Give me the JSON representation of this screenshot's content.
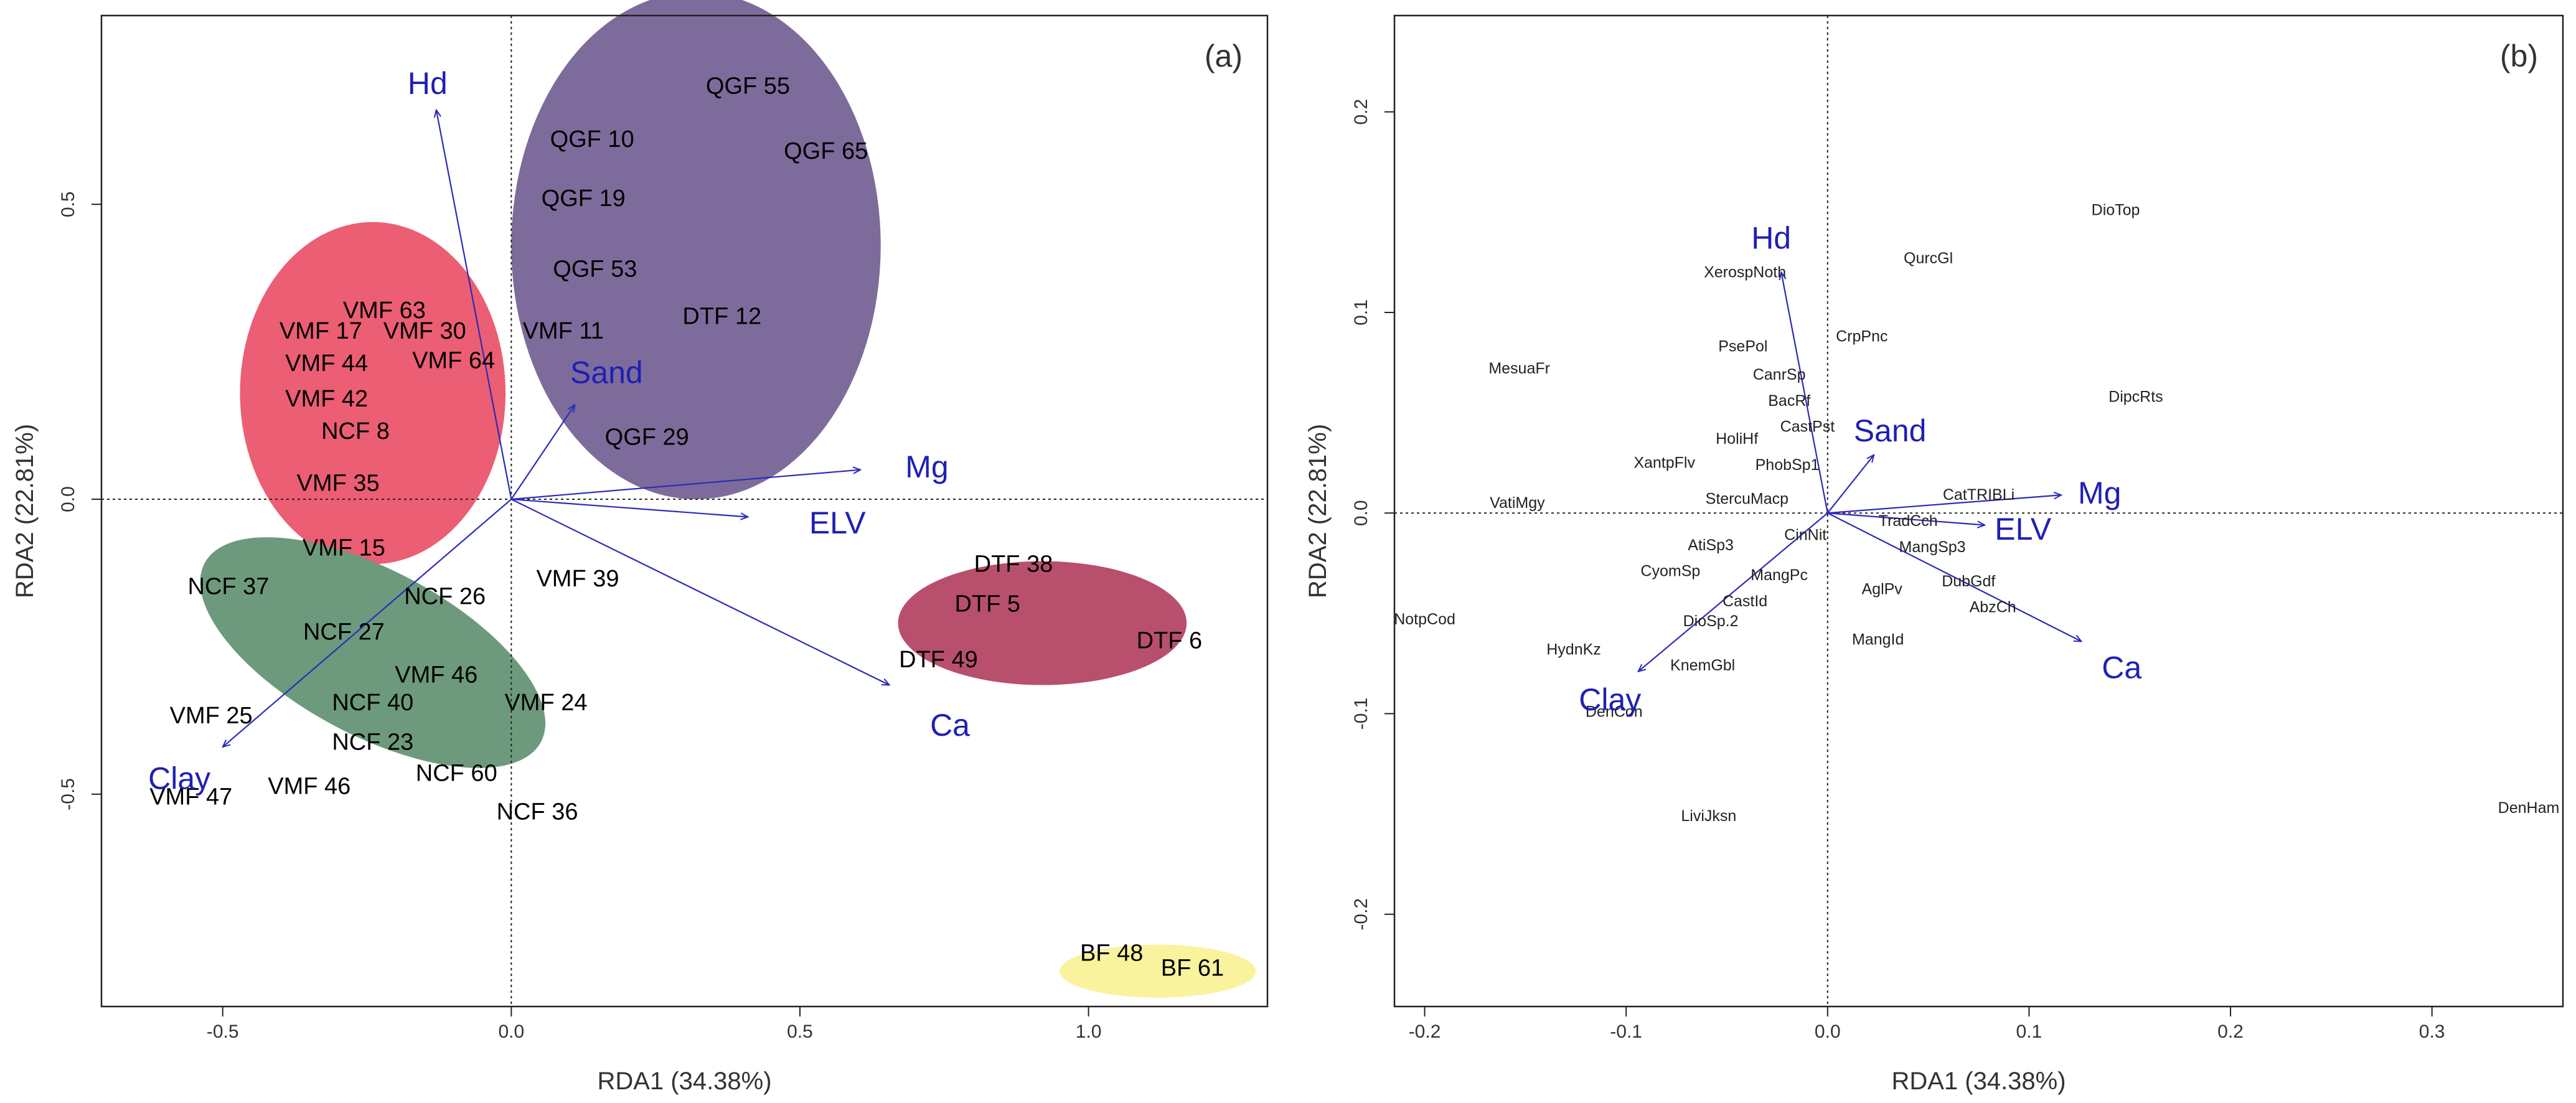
{
  "colors": {
    "arrow": "#2b2bb8",
    "var_label": "#1f1fb4",
    "frame": "#222222"
  },
  "chart_data": [
    {
      "type": "scatter",
      "panel": "(a)",
      "xlabel": "RDA1 (34.38%)",
      "ylabel": "RDA2 (22.81%)",
      "xlim": [
        -0.71,
        1.31
      ],
      "ylim": [
        -0.86,
        0.82
      ],
      "xticks": [
        -0.5,
        0.0,
        0.5,
        1.0
      ],
      "xtick_labels": [
        "-0.5",
        "0.0",
        "0.5",
        "1.0"
      ],
      "yticks": [
        -0.5,
        0.0,
        0.5
      ],
      "ytick_labels": [
        "-0.5",
        "0.0",
        "0.5"
      ],
      "ellipses": [
        {
          "group": "QGF",
          "cx": 0.32,
          "cy": 0.43,
          "rx": 0.32,
          "ry": 0.43,
          "color": "#7d6c9b"
        },
        {
          "group": "VMF",
          "cx": -0.24,
          "cy": 0.18,
          "rx": 0.23,
          "ry": 0.29,
          "color": "#eb5e73"
        },
        {
          "group": "NCF",
          "cx": -0.24,
          "cy": -0.26,
          "rx": 0.33,
          "ry": 0.14,
          "rotate": 28,
          "color": "#6d9a7c"
        },
        {
          "group": "DTF",
          "cx": 0.92,
          "cy": -0.21,
          "rx": 0.25,
          "ry": 0.105,
          "color": "#b8506d"
        },
        {
          "group": "BF",
          "cx": 1.12,
          "cy": -0.8,
          "rx": 0.17,
          "ry": 0.045,
          "color": "#faf39e"
        }
      ],
      "sites": [
        {
          "label": "QGF 55",
          "x": 0.41,
          "y": 0.7
        },
        {
          "label": "QGF 10",
          "x": 0.14,
          "y": 0.61
        },
        {
          "label": "QGF 65",
          "x": 0.545,
          "y": 0.59
        },
        {
          "label": "QGF 19",
          "x": 0.125,
          "y": 0.51
        },
        {
          "label": "QGF 53",
          "x": 0.145,
          "y": 0.39
        },
        {
          "label": "DTF 12",
          "x": 0.365,
          "y": 0.31
        },
        {
          "label": "VMF 11",
          "x": 0.09,
          "y": 0.285
        },
        {
          "label": "QGF 29",
          "x": 0.235,
          "y": 0.105
        },
        {
          "label": "VMF 63",
          "x": -0.22,
          "y": 0.32
        },
        {
          "label": "VMF 17",
          "x": -0.33,
          "y": 0.285
        },
        {
          "label": "VMF 30",
          "x": -0.15,
          "y": 0.285
        },
        {
          "label": "VMF 44",
          "x": -0.32,
          "y": 0.23
        },
        {
          "label": "VMF 64",
          "x": -0.1,
          "y": 0.235
        },
        {
          "label": "VMF 42",
          "x": -0.32,
          "y": 0.17
        },
        {
          "label": "NCF 8",
          "x": -0.27,
          "y": 0.115
        },
        {
          "label": "VMF 35",
          "x": -0.3,
          "y": 0.027
        },
        {
          "label": "VMF 15",
          "x": -0.29,
          "y": -0.083
        },
        {
          "label": "NCF 37",
          "x": -0.49,
          "y": -0.148
        },
        {
          "label": "NCF 26",
          "x": -0.115,
          "y": -0.165
        },
        {
          "label": "VMF 39",
          "x": 0.115,
          "y": -0.135
        },
        {
          "label": "NCF 27",
          "x": -0.29,
          "y": -0.225
        },
        {
          "label": "VMF 46",
          "x": -0.13,
          "y": -0.298
        },
        {
          "label": "NCF 40",
          "x": -0.24,
          "y": -0.345
        },
        {
          "label": "VMF 24",
          "x": 0.06,
          "y": -0.345
        },
        {
          "label": "VMF 25",
          "x": -0.52,
          "y": -0.367
        },
        {
          "label": "NCF 23",
          "x": -0.24,
          "y": -0.412
        },
        {
          "label": "NCF 60",
          "x": -0.095,
          "y": -0.465
        },
        {
          "label": "VMF 46",
          "x": -0.35,
          "y": -0.487
        },
        {
          "label": "VMF 47",
          "x": -0.555,
          "y": -0.505
        },
        {
          "label": "NCF 36",
          "x": 0.045,
          "y": -0.53
        },
        {
          "label": "DTF 38",
          "x": 0.87,
          "y": -0.11
        },
        {
          "label": "DTF 5",
          "x": 0.825,
          "y": -0.178
        },
        {
          "label": "DTF 6",
          "x": 1.14,
          "y": -0.24
        },
        {
          "label": "DTF 49",
          "x": 0.74,
          "y": -0.272
        },
        {
          "label": "BF 48",
          "x": 1.04,
          "y": -0.77
        },
        {
          "label": "BF 61",
          "x": 1.18,
          "y": -0.795
        }
      ],
      "vectors": [
        {
          "label": "Hd",
          "x": -0.13,
          "y": 0.66,
          "lx": -0.145,
          "ly": 0.705
        },
        {
          "label": "Sand",
          "x": 0.11,
          "y": 0.16,
          "lx": 0.165,
          "ly": 0.215
        },
        {
          "label": "Mg",
          "x": 0.605,
          "y": 0.05,
          "lx": 0.72,
          "ly": 0.055
        },
        {
          "label": "ELV",
          "x": 0.41,
          "y": -0.03,
          "lx": 0.565,
          "ly": -0.04
        },
        {
          "label": "Ca",
          "x": 0.655,
          "y": -0.315,
          "lx": 0.76,
          "ly": -0.383
        },
        {
          "label": "Clay",
          "x": -0.5,
          "y": -0.42,
          "lx": -0.575,
          "ly": -0.473
        }
      ]
    },
    {
      "type": "scatter",
      "panel": "(b)",
      "xlabel": "RDA1 (34.38%)",
      "ylabel": "RDA2 (22.81%)",
      "xlim": [
        -0.215,
        0.365
      ],
      "ylim": [
        -0.246,
        0.248
      ],
      "xticks": [
        -0.2,
        -0.1,
        0.0,
        0.1,
        0.2,
        0.3
      ],
      "xtick_labels": [
        "-0.2",
        "-0.1",
        "0.0",
        "0.1",
        "0.2",
        "0.3"
      ],
      "yticks": [
        -0.2,
        -0.1,
        0.0,
        0.1,
        0.2
      ],
      "ytick_labels": [
        "-0.2",
        "-0.1",
        "0.0",
        "0.1",
        "0.2"
      ],
      "species": [
        {
          "label": "DioTop",
          "x": 0.143,
          "y": 0.151
        },
        {
          "label": "QurcGl",
          "x": 0.05,
          "y": 0.127
        },
        {
          "label": "XerospNoth",
          "x": -0.041,
          "y": 0.12
        },
        {
          "label": "CrpPnc",
          "x": 0.017,
          "y": 0.088
        },
        {
          "label": "PsePol",
          "x": -0.042,
          "y": 0.083
        },
        {
          "label": "MesuaFr",
          "x": -0.153,
          "y": 0.072
        },
        {
          "label": "CanrSp",
          "x": -0.024,
          "y": 0.069
        },
        {
          "label": "DipcRts",
          "x": 0.153,
          "y": 0.058
        },
        {
          "label": "BacRf",
          "x": -0.019,
          "y": 0.056
        },
        {
          "label": "CastPst",
          "x": -0.01,
          "y": 0.043
        },
        {
          "label": "HoliHf",
          "x": -0.045,
          "y": 0.037
        },
        {
          "label": "XantpFlv",
          "x": -0.081,
          "y": 0.025
        },
        {
          "label": "PhobSp1",
          "x": -0.02,
          "y": 0.024
        },
        {
          "label": "CatTRIBLi",
          "x": 0.075,
          "y": 0.009
        },
        {
          "label": "VatiMgy",
          "x": -0.154,
          "y": 0.005
        },
        {
          "label": "StercuMacp",
          "x": -0.04,
          "y": 0.007
        },
        {
          "label": "TradCch",
          "x": 0.04,
          "y": -0.004
        },
        {
          "label": "CinNit",
          "x": -0.011,
          "y": -0.011
        },
        {
          "label": "MangSp3",
          "x": 0.052,
          "y": -0.017
        },
        {
          "label": "AtiSp3",
          "x": -0.058,
          "y": -0.016
        },
        {
          "label": "CyomSp",
          "x": -0.078,
          "y": -0.029
        },
        {
          "label": "MangPc",
          "x": -0.024,
          "y": -0.031
        },
        {
          "label": "DubGdf",
          "x": 0.07,
          "y": -0.034
        },
        {
          "label": "AglPv",
          "x": 0.027,
          "y": -0.038
        },
        {
          "label": "CastId",
          "x": -0.041,
          "y": -0.044
        },
        {
          "label": "AbzCh",
          "x": 0.082,
          "y": -0.047
        },
        {
          "label": "NotpCod",
          "x": -0.2,
          "y": -0.053
        },
        {
          "label": "DioSp.2",
          "x": -0.058,
          "y": -0.054
        },
        {
          "label": "MangId",
          "x": 0.025,
          "y": -0.063
        },
        {
          "label": "HydnKz",
          "x": -0.126,
          "y": -0.068
        },
        {
          "label": "KnemGbl",
          "x": -0.062,
          "y": -0.076
        },
        {
          "label": "DenCon",
          "x": -0.106,
          "y": -0.099
        },
        {
          "label": "LiviJksn",
          "x": -0.059,
          "y": -0.151
        },
        {
          "label": "DenHam",
          "x": 0.348,
          "y": -0.147
        }
      ],
      "vectors": [
        {
          "label": "Hd",
          "x": -0.023,
          "y": 0.12,
          "lx": -0.028,
          "ly": 0.137
        },
        {
          "label": "Sand",
          "x": 0.023,
          "y": 0.029,
          "lx": 0.031,
          "ly": 0.041
        },
        {
          "label": "Mg",
          "x": 0.116,
          "y": 0.009,
          "lx": 0.135,
          "ly": 0.01
        },
        {
          "label": "ELV",
          "x": 0.078,
          "y": -0.006,
          "lx": 0.097,
          "ly": -0.008
        },
        {
          "label": "Ca",
          "x": 0.126,
          "y": -0.064,
          "lx": 0.146,
          "ly": -0.077
        },
        {
          "label": "Clay",
          "x": -0.094,
          "y": -0.079,
          "lx": -0.108,
          "ly": -0.093
        }
      ]
    }
  ]
}
